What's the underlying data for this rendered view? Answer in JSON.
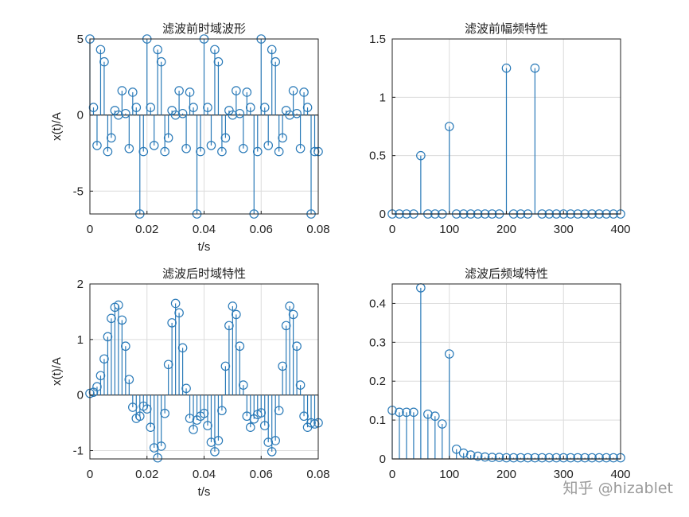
{
  "watermark": "知乎 @hizablet",
  "colors": {
    "stem": "#2a7ab8",
    "grid": "#dcdcdc",
    "axis": "#222222"
  },
  "chart_data": [
    {
      "type": "stem",
      "title": "滤波前时域波形",
      "xlabel": "t/s",
      "ylabel": "x(t)/A",
      "xlim": [
        0,
        0.08
      ],
      "ylim": [
        -6.5,
        5
      ],
      "xticks": [
        0,
        0.02,
        0.04,
        0.06,
        0.08
      ],
      "yticks": [
        -5,
        0,
        5
      ],
      "xtick_labels": [
        "0",
        "0.02",
        "0.04",
        "0.06",
        "0.08"
      ],
      "ytick_labels": [
        "-5",
        "0",
        "5"
      ],
      "grid": true,
      "x": [
        0,
        0.00125,
        0.0025,
        0.00375,
        0.005,
        0.00625,
        0.0075,
        0.00875,
        0.01,
        0.01125,
        0.0125,
        0.01375,
        0.015,
        0.01625,
        0.0175,
        0.01875,
        0.02,
        0.02125,
        0.0225,
        0.02375,
        0.025,
        0.02625,
        0.0275,
        0.02875,
        0.03,
        0.03125,
        0.0325,
        0.03375,
        0.035,
        0.03625,
        0.0375,
        0.03875,
        0.04,
        0.04125,
        0.0425,
        0.04375,
        0.045,
        0.04625,
        0.0475,
        0.04875,
        0.05,
        0.05125,
        0.0525,
        0.05375,
        0.055,
        0.05625,
        0.0575,
        0.05875,
        0.06,
        0.06125,
        0.0625,
        0.06375,
        0.065,
        0.06625,
        0.0675,
        0.06875,
        0.07,
        0.07125,
        0.0725,
        0.07375,
        0.075,
        0.07625,
        0.0775,
        0.07875,
        0.08
      ],
      "values": [
        5.0,
        0.5,
        -2.0,
        4.3,
        3.5,
        -2.4,
        -1.5,
        0.3,
        0.0,
        1.6,
        0.1,
        -2.2,
        1.5,
        0.5,
        -6.5,
        -2.4,
        5.0,
        0.5,
        -2.0,
        4.3,
        3.5,
        -2.4,
        -1.5,
        0.3,
        0.0,
        1.6,
        0.1,
        -2.2,
        1.5,
        0.5,
        -6.5,
        -2.4,
        5.0,
        0.5,
        -2.0,
        4.3,
        3.5,
        -2.4,
        -1.5,
        0.3,
        0.0,
        1.6,
        0.1,
        -2.2,
        1.5,
        0.5,
        -6.5,
        -2.4,
        5.0,
        0.5,
        -2.0,
        4.3,
        3.5,
        -2.4,
        -1.5,
        0.3,
        0.0,
        1.6,
        0.1,
        -2.2,
        1.5,
        0.5,
        -6.5,
        -2.4,
        -2.4
      ]
    },
    {
      "type": "stem",
      "title": "滤波前幅频特性",
      "xlabel": "",
      "ylabel": "",
      "xlim": [
        0,
        400
      ],
      "ylim": [
        0,
        1.5
      ],
      "xticks": [
        0,
        100,
        200,
        300,
        400
      ],
      "yticks": [
        0,
        0.5,
        1,
        1.5
      ],
      "xtick_labels": [
        "0",
        "100",
        "200",
        "300",
        "400"
      ],
      "ytick_labels": [
        "0",
        "0.5",
        "1",
        "1.5"
      ],
      "grid": true,
      "x": [
        0,
        12.5,
        25,
        37.5,
        50,
        62.5,
        75,
        87.5,
        100,
        112.5,
        125,
        137.5,
        150,
        162.5,
        175,
        187.5,
        200,
        212.5,
        225,
        237.5,
        250,
        262.5,
        275,
        287.5,
        300,
        312.5,
        325,
        337.5,
        350,
        362.5,
        375,
        387.5,
        400
      ],
      "values": [
        0,
        0,
        0,
        0,
        0.5,
        0,
        0,
        0,
        0.75,
        0,
        0,
        0,
        0,
        0,
        0,
        0,
        1.25,
        0,
        0,
        0,
        1.25,
        0,
        0,
        0,
        0,
        0,
        0,
        0,
        0,
        0,
        0,
        0,
        0
      ]
    },
    {
      "type": "stem",
      "title": "滤波后时域特性",
      "xlabel": "t/s",
      "ylabel": "x(t)/A",
      "xlim": [
        0,
        0.08
      ],
      "ylim": [
        -1.15,
        2
      ],
      "xticks": [
        0,
        0.02,
        0.04,
        0.06,
        0.08
      ],
      "yticks": [
        -1,
        0,
        1,
        2
      ],
      "xtick_labels": [
        "0",
        "0.02",
        "0.04",
        "0.06",
        "0.08"
      ],
      "ytick_labels": [
        "-1",
        "0",
        "1",
        "2"
      ],
      "grid": true,
      "x": [
        0,
        0.00125,
        0.0025,
        0.00375,
        0.005,
        0.00625,
        0.0075,
        0.00875,
        0.01,
        0.01125,
        0.0125,
        0.01375,
        0.015,
        0.01625,
        0.0175,
        0.01875,
        0.02,
        0.02125,
        0.0225,
        0.02375,
        0.025,
        0.02625,
        0.0275,
        0.02875,
        0.03,
        0.03125,
        0.0325,
        0.03375,
        0.035,
        0.03625,
        0.0375,
        0.03875,
        0.04,
        0.04125,
        0.0425,
        0.04375,
        0.045,
        0.04625,
        0.0475,
        0.04875,
        0.05,
        0.05125,
        0.0525,
        0.05375,
        0.055,
        0.05625,
        0.0575,
        0.05875,
        0.06,
        0.06125,
        0.0625,
        0.06375,
        0.065,
        0.06625,
        0.0675,
        0.06875,
        0.07,
        0.07125,
        0.0725,
        0.07375,
        0.075,
        0.07625,
        0.0775,
        0.07875,
        0.08
      ],
      "values": [
        0.03,
        0.05,
        0.15,
        0.35,
        0.65,
        1.05,
        1.38,
        1.58,
        1.62,
        1.35,
        0.88,
        0.28,
        -0.22,
        -0.42,
        -0.38,
        -0.2,
        -0.25,
        -0.58,
        -0.95,
        -1.13,
        -0.92,
        -0.33,
        0.55,
        1.3,
        1.65,
        1.48,
        0.85,
        0.12,
        -0.42,
        -0.62,
        -0.45,
        -0.38,
        -0.33,
        -0.55,
        -0.85,
        -1.02,
        -0.82,
        -0.28,
        0.52,
        1.25,
        1.6,
        1.45,
        0.88,
        0.18,
        -0.38,
        -0.58,
        -0.43,
        -0.35,
        -0.32,
        -0.55,
        -0.85,
        -1.02,
        -0.82,
        -0.28,
        0.52,
        1.25,
        1.6,
        1.45,
        0.88,
        0.18,
        -0.38,
        -0.58,
        -0.5,
        -0.52,
        -0.5
      ]
    },
    {
      "type": "stem",
      "title": "滤波后频域特性",
      "xlabel": "",
      "ylabel": "",
      "xlim": [
        0,
        400
      ],
      "ylim": [
        0,
        0.45
      ],
      "xticks": [
        0,
        100,
        200,
        300,
        400
      ],
      "yticks": [
        0,
        0.1,
        0.2,
        0.3,
        0.4
      ],
      "xtick_labels": [
        "0",
        "100",
        "200",
        "300",
        "400"
      ],
      "ytick_labels": [
        "0",
        "0.1",
        "0.2",
        "0.3",
        "0.4"
      ],
      "grid": true,
      "x": [
        0,
        12.5,
        25,
        37.5,
        50,
        62.5,
        75,
        87.5,
        100,
        112.5,
        125,
        137.5,
        150,
        162.5,
        175,
        187.5,
        200,
        212.5,
        225,
        237.5,
        250,
        262.5,
        275,
        287.5,
        300,
        312.5,
        325,
        337.5,
        350,
        362.5,
        375,
        387.5,
        400
      ],
      "values": [
        0.125,
        0.12,
        0.12,
        0.12,
        0.44,
        0.115,
        0.11,
        0.09,
        0.27,
        0.025,
        0.015,
        0.01,
        0.007,
        0.005,
        0.004,
        0.004,
        0.003,
        0.003,
        0.003,
        0.003,
        0.003,
        0.003,
        0.003,
        0.003,
        0.003,
        0.003,
        0.003,
        0.003,
        0.003,
        0.003,
        0.003,
        0.003,
        0.003
      ]
    }
  ]
}
